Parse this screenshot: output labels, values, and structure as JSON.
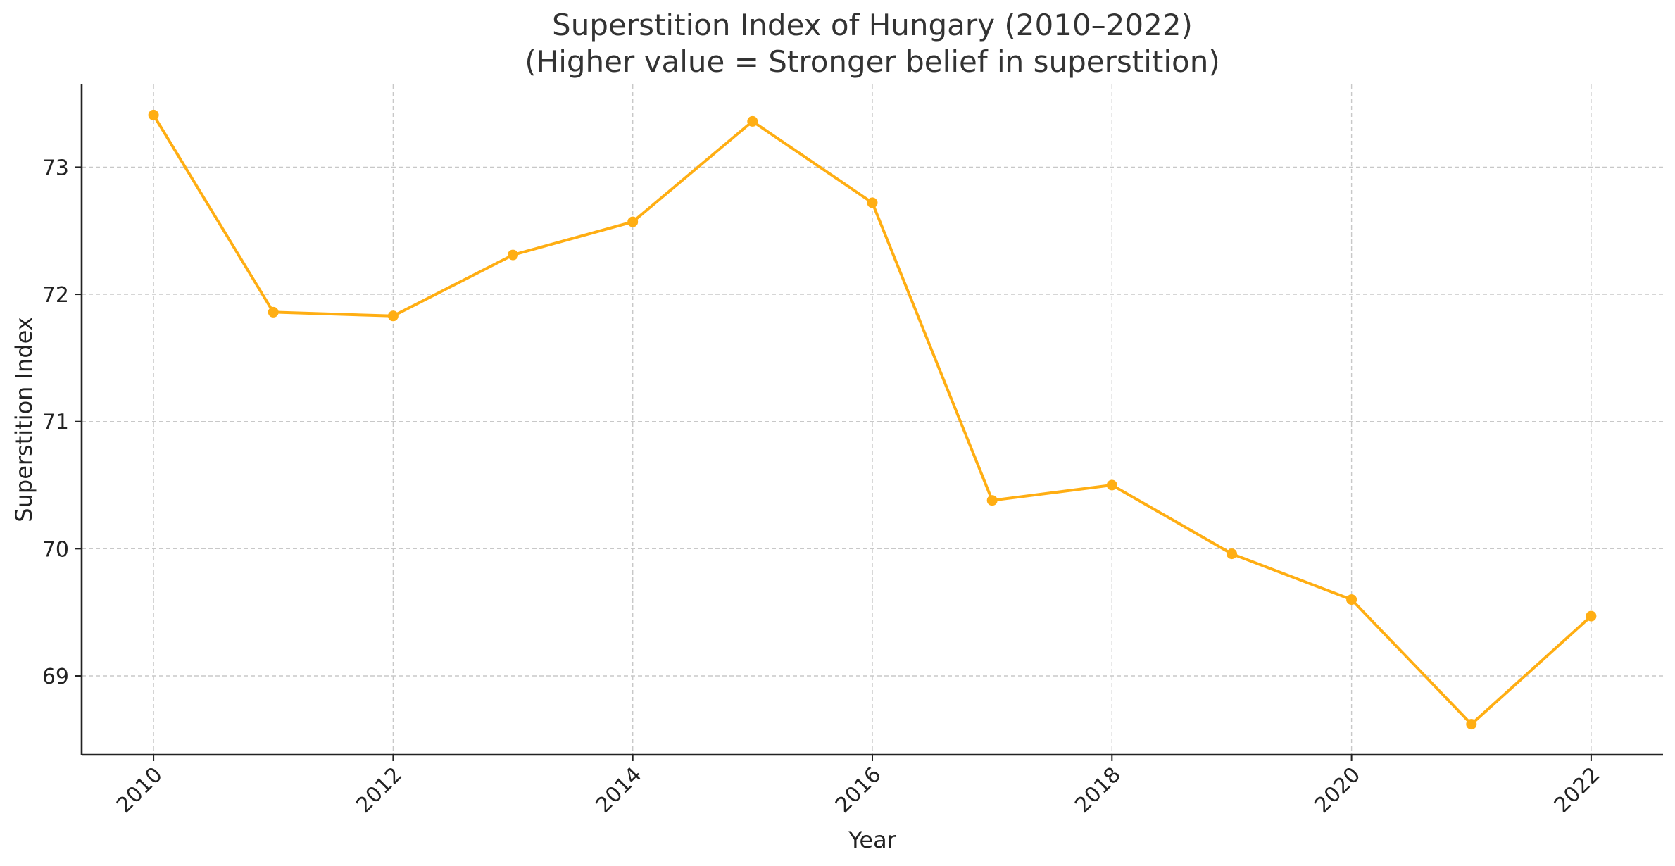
{
  "chart_data": {
    "type": "line",
    "title": "Superstition Index of Hungary (2010–2022)",
    "subtitle": "(Higher value = Stronger belief in superstition)",
    "xlabel": "Year",
    "ylabel": "Superstition Index",
    "x": [
      2010,
      2011,
      2012,
      2013,
      2014,
      2015,
      2016,
      2017,
      2018,
      2019,
      2020,
      2021,
      2022
    ],
    "series": [
      {
        "values": [
          73.41,
          71.86,
          71.83,
          72.31,
          72.57,
          73.36,
          72.72,
          70.38,
          70.5,
          69.96,
          69.6,
          68.62,
          69.47
        ],
        "color": "#FFAE13",
        "marker": "circle"
      }
    ],
    "xticks": [
      "2010",
      "2012",
      "2014",
      "2016",
      "2018",
      "2020",
      "2022"
    ],
    "yticks": [
      "69",
      "70",
      "71",
      "72",
      "73"
    ],
    "xlim": [
      2009.4,
      2022.6
    ],
    "ylim": [
      68.38,
      73.65
    ],
    "grid": true,
    "legend": "none"
  }
}
